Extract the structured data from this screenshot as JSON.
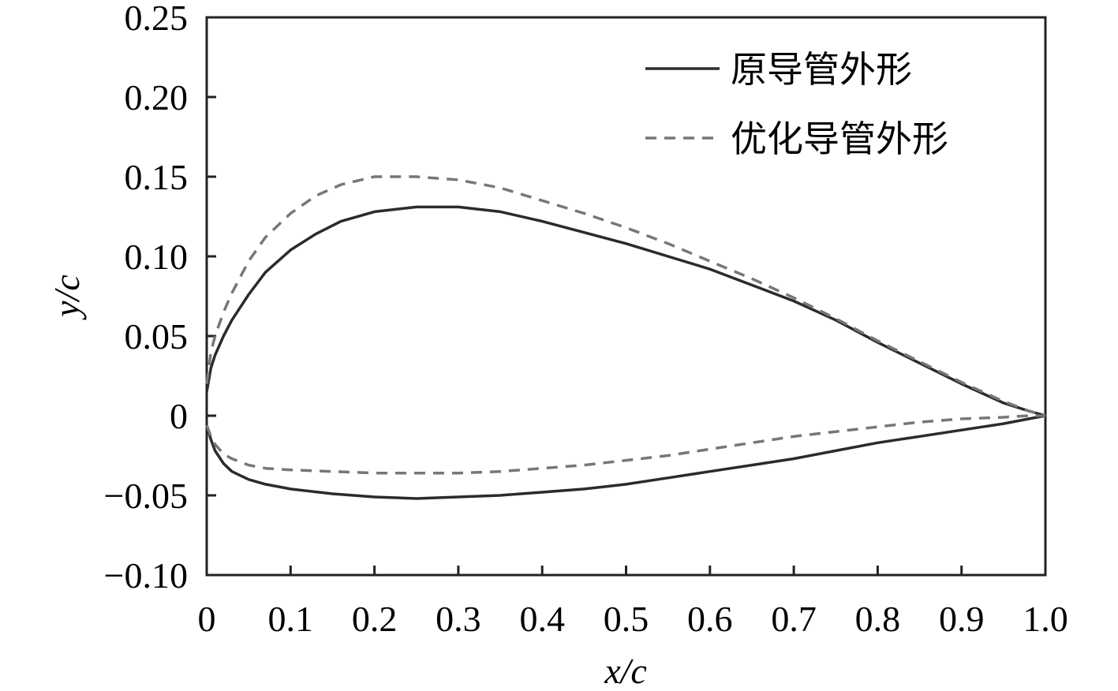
{
  "chart_data": {
    "type": "line",
    "title": "",
    "xlabel": "x/c",
    "ylabel": "y/c",
    "xlim": [
      0,
      1.0
    ],
    "ylim": [
      -0.1,
      0.25
    ],
    "x_tick_labels": [
      "0",
      "0.1",
      "0.2",
      "0.3",
      "0.4",
      "0.5",
      "0.6",
      "0.7",
      "0.8",
      "0.9",
      "1.0"
    ],
    "x_tick_values": [
      0,
      0.1,
      0.2,
      0.3,
      0.4,
      0.5,
      0.6,
      0.7,
      0.8,
      0.9,
      1.0
    ],
    "y_tick_labels": [
      "0.25",
      "0.20",
      "0.15",
      "0.10",
      "0.05",
      "0",
      "−0.05",
      "−0.10"
    ],
    "y_tick_values": [
      0.25,
      0.2,
      0.15,
      0.1,
      0.05,
      0,
      -0.05,
      -0.1
    ],
    "grid": false,
    "legend_position": "top-right",
    "series": [
      {
        "name": "原导管外形",
        "style": "solid",
        "color": "#2b2b2b",
        "upper": {
          "x": [
            0,
            0.005,
            0.01,
            0.02,
            0.03,
            0.05,
            0.07,
            0.1,
            0.13,
            0.16,
            0.2,
            0.25,
            0.3,
            0.35,
            0.4,
            0.45,
            0.5,
            0.55,
            0.6,
            0.65,
            0.7,
            0.75,
            0.8,
            0.85,
            0.9,
            0.95,
            0.98,
            1.0
          ],
          "y": [
            0.015,
            0.03,
            0.038,
            0.05,
            0.06,
            0.076,
            0.09,
            0.104,
            0.114,
            0.122,
            0.128,
            0.131,
            0.131,
            0.128,
            0.122,
            0.115,
            0.108,
            0.1,
            0.092,
            0.082,
            0.072,
            0.06,
            0.046,
            0.033,
            0.02,
            0.008,
            0.003,
            0.0
          ]
        },
        "lower": {
          "x": [
            0,
            0.005,
            0.01,
            0.02,
            0.03,
            0.05,
            0.07,
            0.1,
            0.15,
            0.2,
            0.25,
            0.3,
            0.35,
            0.4,
            0.45,
            0.5,
            0.55,
            0.6,
            0.65,
            0.7,
            0.75,
            0.8,
            0.85,
            0.9,
            0.95,
            0.98,
            1.0
          ],
          "y": [
            -0.006,
            -0.015,
            -0.022,
            -0.03,
            -0.035,
            -0.04,
            -0.043,
            -0.046,
            -0.049,
            -0.051,
            -0.052,
            -0.051,
            -0.05,
            -0.048,
            -0.046,
            -0.043,
            -0.039,
            -0.035,
            -0.031,
            -0.027,
            -0.022,
            -0.017,
            -0.013,
            -0.009,
            -0.005,
            -0.002,
            0.0
          ]
        }
      },
      {
        "name": "优化导管外形",
        "style": "dashed",
        "color": "#777777",
        "upper": {
          "x": [
            0,
            0.005,
            0.01,
            0.02,
            0.03,
            0.05,
            0.07,
            0.1,
            0.13,
            0.16,
            0.2,
            0.25,
            0.3,
            0.35,
            0.4,
            0.45,
            0.5,
            0.55,
            0.6,
            0.65,
            0.7,
            0.75,
            0.8,
            0.85,
            0.9,
            0.95,
            0.98,
            1.0
          ],
          "y": [
            0.02,
            0.04,
            0.05,
            0.065,
            0.077,
            0.097,
            0.112,
            0.127,
            0.138,
            0.145,
            0.15,
            0.15,
            0.148,
            0.143,
            0.135,
            0.127,
            0.118,
            0.108,
            0.097,
            0.086,
            0.074,
            0.061,
            0.047,
            0.034,
            0.021,
            0.009,
            0.003,
            0.0
          ]
        },
        "lower": {
          "x": [
            0,
            0.005,
            0.01,
            0.02,
            0.03,
            0.05,
            0.07,
            0.1,
            0.15,
            0.2,
            0.25,
            0.3,
            0.35,
            0.4,
            0.45,
            0.5,
            0.55,
            0.6,
            0.65,
            0.7,
            0.75,
            0.8,
            0.85,
            0.9,
            0.95,
            0.98,
            1.0
          ],
          "y": [
            -0.006,
            -0.013,
            -0.018,
            -0.024,
            -0.027,
            -0.031,
            -0.033,
            -0.034,
            -0.035,
            -0.036,
            -0.036,
            -0.036,
            -0.035,
            -0.033,
            -0.031,
            -0.028,
            -0.025,
            -0.021,
            -0.017,
            -0.013,
            -0.01,
            -0.007,
            -0.004,
            -0.002,
            -0.001,
            0.0,
            0.0
          ]
        }
      }
    ]
  }
}
